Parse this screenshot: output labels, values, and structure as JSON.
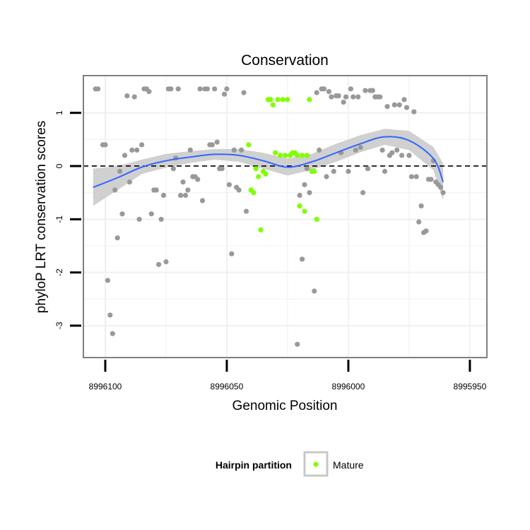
{
  "chart_data": {
    "type": "scatter",
    "title": "Conservation",
    "xlabel": "Genomic Position",
    "ylabel": "phyloP LRT conservation scores",
    "x_reversed": true,
    "xlim": [
      8996109,
      8995943
    ],
    "ylim": [
      -3.6,
      1.7
    ],
    "x_ticks": [
      8996100,
      8996050,
      8996000,
      8995950
    ],
    "x_tick_labels": [
      "8996100",
      "8996050",
      "8996000",
      "8995950"
    ],
    "y_ticks": [
      1,
      0,
      -1,
      -2,
      -3
    ],
    "y_tick_labels": [
      "1",
      "0",
      "-1",
      "-2",
      "-3"
    ],
    "reference_line": {
      "y": 0,
      "style": "dashed"
    },
    "colors": {
      "other": "#999999",
      "mature": "#7fff00",
      "smooth": "#3366ff",
      "ribbon": "#d0d0d0",
      "panel_border": "#808080",
      "grid": "#f0f0f0",
      "legend_key_border": "#c8c8c8"
    },
    "legend": {
      "title": "Hairpin partition",
      "entries": [
        "Mature"
      ],
      "placement": "bottom"
    },
    "series": [
      {
        "name": "Other",
        "points": [
          [
            8996104,
            1.45
          ],
          [
            8996103,
            1.45
          ],
          [
            8996101,
            0.4
          ],
          [
            8996100,
            0.4
          ],
          [
            8996099,
            -2.15
          ],
          [
            8996098,
            -2.8
          ],
          [
            8996097,
            -3.15
          ],
          [
            8996096,
            -0.45
          ],
          [
            8996095,
            -1.35
          ],
          [
            8996094,
            -0.1
          ],
          [
            8996093,
            -0.9
          ],
          [
            8996092,
            0.2
          ],
          [
            8996091,
            1.32
          ],
          [
            8996090,
            -0.3
          ],
          [
            8996089,
            0.3
          ],
          [
            8996088,
            1.3
          ],
          [
            8996087,
            0.3
          ],
          [
            8996086,
            -1.0
          ],
          [
            8996085,
            0.4
          ],
          [
            8996084,
            1.45
          ],
          [
            8996083,
            1.45
          ],
          [
            8996082,
            1.4
          ],
          [
            8996081,
            -0.9
          ],
          [
            8996080,
            -0.45
          ],
          [
            8996079,
            -0.45
          ],
          [
            8996078,
            -1.85
          ],
          [
            8996077,
            -1.0
          ],
          [
            8996076,
            -0.55
          ],
          [
            8996075,
            -1.8
          ],
          [
            8996074,
            1.45
          ],
          [
            8996073,
            1.45
          ],
          [
            8996072,
            -0.05
          ],
          [
            8996071,
            0.15
          ],
          [
            8996070,
            1.45
          ],
          [
            8996069,
            -0.55
          ],
          [
            8996068,
            -0.3
          ],
          [
            8996067,
            -0.55
          ],
          [
            8996066,
            -0.45
          ],
          [
            8996065,
            0.3
          ],
          [
            8996064,
            -0.2
          ],
          [
            8996063,
            -0.2
          ],
          [
            8996062,
            -0.25
          ],
          [
            8996061,
            1.45
          ],
          [
            8996060,
            -0.65
          ],
          [
            8996059,
            1.45
          ],
          [
            8996058,
            1.45
          ],
          [
            8996057,
            0.4
          ],
          [
            8996056,
            0.4
          ],
          [
            8996055,
            1.45
          ],
          [
            8996054,
            0.45
          ],
          [
            8996053,
            -0.05
          ],
          [
            8996052,
            -0.05
          ],
          [
            8996051,
            1.35
          ],
          [
            8996050,
            1.45
          ],
          [
            8996049,
            -0.35
          ],
          [
            8996048,
            -1.65
          ],
          [
            8996047,
            0.3
          ],
          [
            8996046,
            -0.4
          ],
          [
            8996045,
            -0.45
          ],
          [
            8996044,
            0.3
          ],
          [
            8996043,
            1.38
          ],
          [
            8996042,
            -0.85
          ],
          [
            8996021,
            -3.35
          ],
          [
            8996020,
            -0.55
          ],
          [
            8996019,
            -1.75
          ],
          [
            8996018,
            -0.35
          ],
          [
            8996017,
            -0.05
          ],
          [
            8996016,
            -0.5
          ],
          [
            8996015,
            -0.1
          ],
          [
            8996014,
            -2.35
          ],
          [
            8996013,
            1.38
          ],
          [
            8996012,
            0.3
          ],
          [
            8996011,
            1.45
          ],
          [
            8996010,
            1.45
          ],
          [
            8996009,
            -0.2
          ],
          [
            8996008,
            1.4
          ],
          [
            8996007,
            1.3
          ],
          [
            8996006,
            -0.1
          ],
          [
            8996005,
            1.32
          ],
          [
            8996004,
            1.32
          ],
          [
            8996003,
            0.25
          ],
          [
            8996002,
            1.2
          ],
          [
            8996001,
            1.3
          ],
          [
            8996000,
            -0.1
          ],
          [
            8995999,
            1.45
          ],
          [
            8995998,
            1.3
          ],
          [
            8995997,
            0.3
          ],
          [
            8995996,
            1.3
          ],
          [
            8995995,
            0.35
          ],
          [
            8995994,
            -0.5
          ],
          [
            8995993,
            1.42
          ],
          [
            8995992,
            -0.05
          ],
          [
            8995991,
            1.42
          ],
          [
            8995990,
            1.42
          ],
          [
            8995989,
            1.3
          ],
          [
            8995988,
            1.3
          ],
          [
            8995987,
            1.3
          ],
          [
            8995986,
            0.3
          ],
          [
            8995985,
            -0.1
          ],
          [
            8995984,
            1.12
          ],
          [
            8995983,
            0.2
          ],
          [
            8995982,
            0.25
          ],
          [
            8995981,
            1.15
          ],
          [
            8995980,
            0.3
          ],
          [
            8995979,
            1.15
          ],
          [
            8995978,
            0.2
          ],
          [
            8995977,
            1.25
          ],
          [
            8995976,
            1.1
          ],
          [
            8995975,
            0.2
          ],
          [
            8995974,
            -0.2
          ],
          [
            8995973,
            1.02
          ],
          [
            8995972,
            -0.2
          ],
          [
            8995971,
            -1.05
          ],
          [
            8995970,
            -0.75
          ],
          [
            8995969,
            -1.25
          ],
          [
            8995968,
            -1.22
          ],
          [
            8995967,
            -0.25
          ],
          [
            8995966,
            -0.25
          ],
          [
            8995965,
            0.1
          ],
          [
            8995964,
            -0.3
          ],
          [
            8995963,
            -0.35
          ],
          [
            8995962,
            -0.4
          ],
          [
            8995961,
            -0.5
          ]
        ]
      },
      {
        "name": "Mature",
        "points": [
          [
            8996041,
            0.4
          ],
          [
            8996040,
            -0.45
          ],
          [
            8996039,
            -0.5
          ],
          [
            8996038,
            -0.05
          ],
          [
            8996037,
            -0.2
          ],
          [
            8996036,
            -1.2
          ],
          [
            8996035,
            -0.1
          ],
          [
            8996034,
            -0.15
          ],
          [
            8996033,
            1.25
          ],
          [
            8996032,
            1.25
          ],
          [
            8996031,
            1.15
          ],
          [
            8996030,
            0.25
          ],
          [
            8996029,
            1.25
          ],
          [
            8996028,
            0.2
          ],
          [
            8996027,
            1.25
          ],
          [
            8996026,
            0.2
          ],
          [
            8996025,
            1.25
          ],
          [
            8996024,
            0.2
          ],
          [
            8996023,
            0.25
          ],
          [
            8996022,
            0.25
          ],
          [
            8996021,
            0.2
          ],
          [
            8996020,
            -0.75
          ],
          [
            8996019,
            0.2
          ],
          [
            8996018,
            -0.85
          ],
          [
            8996017,
            0.2
          ],
          [
            8996016,
            1.25
          ],
          [
            8996015,
            -0.1
          ],
          [
            8996014,
            -0.1
          ],
          [
            8996013,
            -1.0
          ]
        ]
      }
    ],
    "smooth_curve": {
      "x": [
        8996105,
        8996095,
        8996085,
        8996075,
        8996065,
        8996055,
        8996045,
        8996035,
        8996025,
        8996015,
        8996005,
        8995995,
        8995985,
        8995975,
        8995965,
        8995961
      ],
      "y": [
        -0.4,
        -0.22,
        -0.02,
        0.1,
        0.17,
        0.22,
        0.2,
        0.1,
        -0.02,
        0.08,
        0.25,
        0.42,
        0.55,
        0.48,
        0.14,
        -0.3
      ],
      "ribbon_low": [
        -0.75,
        -0.45,
        -0.15,
        -0.03,
        0.06,
        0.12,
        0.08,
        -0.05,
        -0.18,
        -0.07,
        0.08,
        0.26,
        0.4,
        0.3,
        -0.08,
        -0.65
      ],
      "ribbon_high": [
        -0.05,
        0.0,
        0.12,
        0.23,
        0.28,
        0.32,
        0.32,
        0.25,
        0.14,
        0.23,
        0.42,
        0.58,
        0.7,
        0.66,
        0.36,
        0.05
      ]
    }
  }
}
